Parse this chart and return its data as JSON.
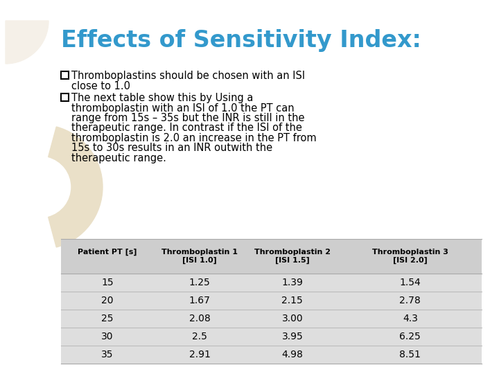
{
  "title": "Effects of Sensitivity Index:",
  "title_color": "#3399CC",
  "background_color": "#FFFFFF",
  "bullet1_line1": "Thromboplastins should be chosen with an ISI",
  "bullet1_line2": "close to 1.0",
  "bullet2_lines": [
    "The next table show this by Using a",
    "thromboplastin with an ISI of 1.0 the PT can",
    "range from 15s – 35s but the INR is still in the",
    "therapeutic range. In contrast if the ISI of the",
    "thromboplastin is 2.0 an increase in the PT from",
    "15s to 30s results in an INR outwith the",
    "therapeutic range."
  ],
  "table_header_row1": [
    "Patient PT [s]",
    "Thromboplastin 1",
    "Thromboplastin 2",
    "Thromboplastin 3"
  ],
  "table_header_row2": [
    "",
    "[ISI 1.0]",
    "[ISI 1.5]",
    "[ISI 2.0]"
  ],
  "table_data": [
    [
      "15",
      "1.25",
      "1.39",
      "1.54"
    ],
    [
      "20",
      "1.67",
      "2.15",
      "2.78"
    ],
    [
      "25",
      "2.08",
      "3.00",
      "4.3"
    ],
    [
      "30",
      "2.5",
      "3.95",
      "6.25"
    ],
    [
      "35",
      "2.91",
      "4.98",
      "8.51"
    ]
  ],
  "table_bg": "#DEDEDE",
  "deco_beige": "#EAE0C8",
  "deco_beige_light": "#F5F0E8",
  "text_color": "#000000"
}
